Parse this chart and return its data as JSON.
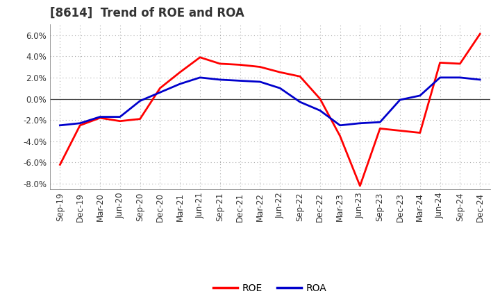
{
  "title": "[8614]  Trend of ROE and ROA",
  "x_labels": [
    "Sep-19",
    "Dec-19",
    "Mar-20",
    "Jun-20",
    "Sep-20",
    "Dec-20",
    "Mar-21",
    "Jun-21",
    "Sep-21",
    "Dec-21",
    "Mar-22",
    "Jun-22",
    "Sep-22",
    "Dec-22",
    "Mar-23",
    "Jun-23",
    "Sep-23",
    "Dec-23",
    "Mar-24",
    "Jun-24",
    "Sep-24",
    "Dec-24"
  ],
  "roe": [
    -6.2,
    -2.5,
    -1.8,
    -2.1,
    -1.9,
    1.0,
    2.5,
    3.9,
    3.3,
    3.2,
    3.0,
    2.5,
    2.1,
    0.0,
    -3.5,
    -8.2,
    -2.8,
    -3.0,
    -3.2,
    3.4,
    3.3,
    6.1
  ],
  "roa": [
    -2.5,
    -2.3,
    -1.7,
    -1.7,
    -0.2,
    0.6,
    1.4,
    2.0,
    1.8,
    1.7,
    1.6,
    1.0,
    -0.3,
    -1.1,
    -2.5,
    -2.3,
    -2.2,
    -0.1,
    0.3,
    2.0,
    2.0,
    1.8
  ],
  "roe_color": "#FF0000",
  "roa_color": "#0000CC",
  "ylim": [
    -8.5,
    7.0
  ],
  "yticks": [
    -8.0,
    -6.0,
    -4.0,
    -2.0,
    0.0,
    2.0,
    4.0,
    6.0
  ],
  "grid_color": "#aaaaaa",
  "bg_color": "#ffffff",
  "line_width": 2.0,
  "title_fontsize": 12,
  "tick_fontsize": 8.5,
  "legend_fontsize": 10
}
